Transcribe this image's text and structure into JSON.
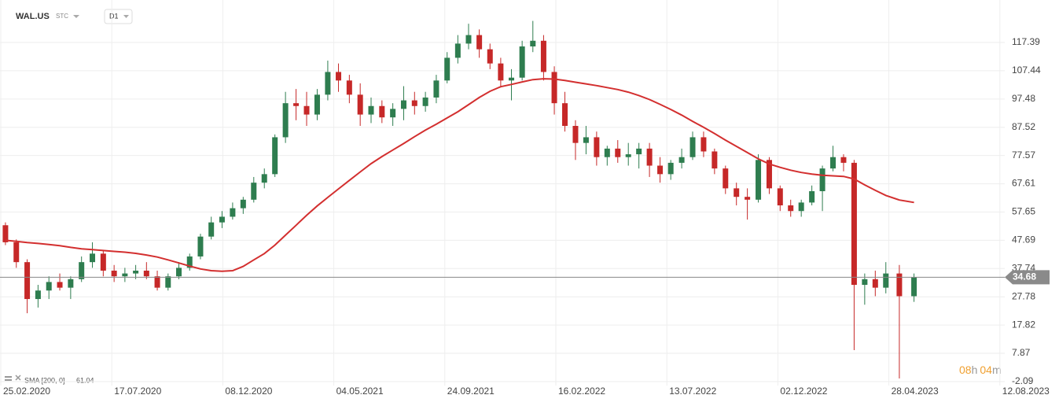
{
  "header": {
    "symbol": "WAL.US",
    "market": "STC",
    "timeframe": "D1"
  },
  "countdown": {
    "hours": "08",
    "hours_unit": "h",
    "minutes": "04",
    "minutes_unit": "m"
  },
  "chart_data": {
    "type": "candlestick",
    "up_color": "#2e7d4f",
    "down_color": "#c62828",
    "x": [
      "02.03.2020",
      "16.03.2020",
      "30.03.2020",
      "13.04.2020",
      "27.04.2020",
      "11.05.2020",
      "25.05.2020",
      "08.06.2020",
      "22.06.2020",
      "06.07.2020",
      "20.07.2020",
      "03.08.2020",
      "17.08.2020",
      "31.08.2020",
      "14.09.2020",
      "28.09.2020",
      "12.10.2020",
      "26.10.2020",
      "09.11.2020",
      "23.11.2020",
      "07.12.2020",
      "21.12.2020",
      "04.01.2021",
      "18.01.2021",
      "01.02.2021",
      "15.02.2021",
      "01.03.2021",
      "15.03.2021",
      "29.03.2021",
      "12.04.2021",
      "26.04.2021",
      "10.05.2021",
      "24.05.2021",
      "07.06.2021",
      "21.06.2021",
      "05.07.2021",
      "19.07.2021",
      "02.08.2021",
      "16.08.2021",
      "30.08.2021",
      "13.09.2021",
      "27.09.2021",
      "11.10.2021",
      "25.10.2021",
      "08.11.2021",
      "22.11.2021",
      "06.12.2021",
      "20.12.2021",
      "03.01.2022",
      "17.01.2022",
      "31.01.2022",
      "14.02.2022",
      "28.02.2022",
      "14.03.2022",
      "28.03.2022",
      "11.04.2022",
      "25.04.2022",
      "09.05.2022",
      "23.05.2022",
      "06.06.2022",
      "20.06.2022",
      "04.07.2022",
      "18.07.2022",
      "01.08.2022",
      "15.08.2022",
      "29.08.2022",
      "12.09.2022",
      "26.09.2022",
      "10.10.2022",
      "24.10.2022",
      "07.11.2022",
      "21.11.2022",
      "05.12.2022",
      "19.12.2022",
      "02.01.2023",
      "16.01.2023",
      "30.01.2023",
      "13.02.2023",
      "27.02.2023",
      "13.03.2023",
      "27.03.2023",
      "10.04.2023",
      "24.04.2023",
      "08.05.2023",
      "22.05.2023"
    ],
    "open": [
      53,
      47,
      40,
      27,
      30,
      33,
      31,
      34,
      40,
      43,
      37,
      35,
      36,
      37,
      35,
      31,
      35,
      38,
      42,
      49,
      54,
      56,
      59,
      62,
      68,
      71,
      84,
      96,
      95,
      92,
      99,
      107,
      104,
      99,
      92,
      95,
      91,
      94,
      97,
      95,
      98,
      104,
      112,
      117,
      120,
      115,
      110,
      104,
      105,
      116,
      118,
      107,
      96,
      88,
      82,
      84,
      77,
      80,
      77,
      78,
      80,
      74,
      71,
      75,
      77,
      84,
      79,
      73,
      66,
      63,
      62,
      76,
      66,
      60,
      58,
      61,
      65,
      73,
      77,
      75,
      32,
      34,
      31,
      36,
      28
    ],
    "high": [
      54,
      48,
      41,
      32,
      35,
      36,
      35,
      42,
      47,
      44,
      39,
      38,
      39,
      40,
      37,
      36,
      40,
      43,
      50,
      56,
      58,
      61,
      63,
      70,
      73,
      85,
      100,
      101,
      100,
      101,
      111,
      110,
      106,
      103,
      98,
      97,
      96,
      102,
      100,
      100,
      106,
      114,
      120,
      124,
      122,
      117,
      112,
      108,
      118,
      125,
      120,
      109,
      100,
      90,
      88,
      86,
      81,
      83,
      82,
      82,
      82,
      77,
      76,
      80,
      86,
      86,
      80,
      74,
      68,
      66,
      78,
      77,
      67,
      62,
      62,
      67,
      74,
      81,
      78,
      76,
      36,
      37,
      40,
      39,
      36
    ],
    "low": [
      46,
      38,
      22,
      24,
      27,
      30,
      27,
      33,
      38,
      35,
      33,
      33,
      34,
      34,
      30,
      30,
      34,
      37,
      41,
      48,
      52,
      55,
      57,
      61,
      66,
      70,
      82,
      90,
      88,
      90,
      97,
      100,
      96,
      88,
      89,
      89,
      88,
      90,
      92,
      93,
      96,
      103,
      110,
      115,
      112,
      108,
      102,
      97,
      104,
      114,
      104,
      92,
      86,
      76,
      78,
      74,
      74,
      75,
      74,
      73,
      70,
      68,
      69,
      73,
      76,
      77,
      71,
      64,
      60,
      55,
      61,
      64,
      58,
      56,
      56,
      60,
      58,
      72,
      72,
      9,
      25,
      28,
      29,
      -1,
      26
    ],
    "close": [
      47,
      40,
      27,
      30,
      33,
      31,
      34,
      40,
      43,
      37,
      35,
      36,
      37,
      35,
      31,
      35,
      38,
      42,
      49,
      54,
      56,
      59,
      62,
      68,
      71,
      84,
      96,
      95,
      92,
      99,
      107,
      104,
      99,
      92,
      95,
      91,
      94,
      97,
      95,
      98,
      104,
      112,
      117,
      120,
      115,
      110,
      104,
      105,
      116,
      118,
      107,
      96,
      88,
      82,
      84,
      77,
      80,
      77,
      78,
      80,
      74,
      71,
      75,
      77,
      84,
      79,
      73,
      66,
      63,
      62,
      76,
      66,
      60,
      58,
      61,
      65,
      73,
      77,
      75,
      32,
      34,
      31,
      36,
      28,
      34.68
    ],
    "sma": {
      "name": "SMA [200, 0]",
      "color": "#d32f2f",
      "values": [
        47.7,
        47.3,
        46.9,
        46.6,
        46.2,
        45.8,
        45.2,
        44.7,
        44.4,
        44.1,
        43.8,
        43.5,
        43.1,
        42.5,
        41.8,
        40.8,
        39.7,
        38.6,
        37.6,
        37,
        36.8,
        37,
        38.5,
        40.8,
        43,
        46,
        49.5,
        53,
        56.5,
        59.8,
        62.8,
        65.8,
        68.8,
        71.8,
        74.7,
        77.2,
        79.5,
        81.8,
        84.2,
        86.5,
        88.6,
        90.8,
        93,
        95.5,
        98,
        100.2,
        101.8,
        102.6,
        103.5,
        104.3,
        104.6,
        104.5,
        104,
        103.4,
        102.8,
        102.2,
        101.5,
        100.8,
        99.9,
        98.7,
        97.3,
        95.6,
        93.8,
        91.8,
        89.6,
        87.5,
        85.3,
        83,
        80.8,
        78.6,
        76.4,
        74.6,
        73.4,
        72.4,
        71.6,
        71,
        70.6,
        70.4,
        70.2,
        69.3,
        67.2,
        65.3,
        63.5,
        61.9,
        61.04
      ]
    },
    "ylim": [
      -3.48,
      132.36
    ],
    "yticks": [
      117.39,
      107.44,
      97.48,
      87.52,
      77.57,
      67.61,
      57.65,
      47.69,
      37.74,
      27.78,
      17.82,
      7.87,
      -2.09
    ],
    "xlim": [
      "24.02.2020",
      "20.08.2023"
    ],
    "xticks": [
      "25.02.2020",
      "17.07.2020",
      "08.12.2020",
      "04.05.2021",
      "24.09.2021",
      "16.02.2022",
      "13.07.2022",
      "02.12.2022",
      "28.04.2023",
      "12.08.2023"
    ],
    "grid": true
  }
}
